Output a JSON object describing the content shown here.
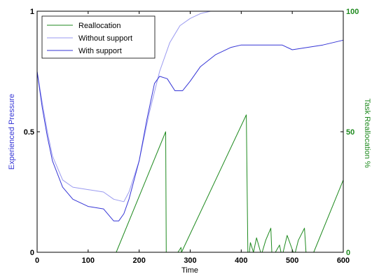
{
  "chart_data": {
    "type": "line",
    "xlabel": "Time",
    "ylabel_left": "Experienced Pressure",
    "ylabel_right": "Task Reallocation %",
    "xlim": [
      0,
      600
    ],
    "ylim_left": [
      0,
      1
    ],
    "ylim_right": [
      0,
      100
    ],
    "x_ticks": [
      "0",
      "100",
      "200",
      "300",
      "400",
      "500",
      "600"
    ],
    "y_left_ticks": [
      "0",
      "0.5",
      "1"
    ],
    "y_right_ticks": [
      "0",
      "50",
      "100"
    ],
    "legend": {
      "position": "top-left",
      "entries": [
        "Reallocation",
        "Without support",
        "With support"
      ]
    },
    "colors": {
      "reallocation": "#1f8a1f",
      "without": "#9a9af0",
      "with": "#3535d6"
    },
    "series": [
      {
        "name": "Reallocation",
        "axis": "right",
        "x": [
          0,
          155,
          252,
          253,
          276,
          282,
          283,
          410,
          413,
          416,
          418,
          424,
          430,
          438,
          441,
          448,
          458,
          460,
          467,
          475,
          478,
          482,
          490,
          502,
          506,
          512,
          524,
          527,
          530,
          542,
          600
        ],
        "y": [
          0,
          0,
          50,
          0,
          0,
          2,
          0,
          57,
          0,
          0,
          4,
          0,
          6,
          0,
          0,
          5,
          10,
          0,
          0,
          3,
          0,
          0,
          7,
          0,
          0,
          5,
          10,
          0,
          0,
          0,
          30
        ]
      },
      {
        "name": "Without support",
        "axis": "left",
        "x": [
          0,
          10,
          20,
          30,
          50,
          70,
          100,
          130,
          150,
          170,
          180,
          200,
          220,
          240,
          260,
          280,
          300,
          320,
          340,
          360,
          400,
          450,
          500,
          550,
          600
        ],
        "y": [
          0.75,
          0.62,
          0.5,
          0.4,
          0.3,
          0.27,
          0.26,
          0.25,
          0.22,
          0.21,
          0.25,
          0.38,
          0.58,
          0.75,
          0.87,
          0.94,
          0.97,
          0.99,
          1.0,
          1.0,
          1.0,
          1.0,
          1.0,
          1.0,
          1.0
        ]
      },
      {
        "name": "With support",
        "axis": "left",
        "x": [
          0,
          10,
          20,
          30,
          50,
          70,
          100,
          130,
          150,
          160,
          170,
          180,
          200,
          215,
          230,
          240,
          255,
          270,
          285,
          300,
          320,
          350,
          380,
          400,
          430,
          460,
          480,
          500,
          530,
          560,
          600
        ],
        "y": [
          0.75,
          0.6,
          0.48,
          0.38,
          0.27,
          0.22,
          0.19,
          0.18,
          0.13,
          0.13,
          0.16,
          0.22,
          0.38,
          0.55,
          0.7,
          0.73,
          0.72,
          0.67,
          0.67,
          0.71,
          0.77,
          0.82,
          0.85,
          0.86,
          0.86,
          0.86,
          0.86,
          0.84,
          0.85,
          0.86,
          0.88
        ]
      }
    ]
  }
}
